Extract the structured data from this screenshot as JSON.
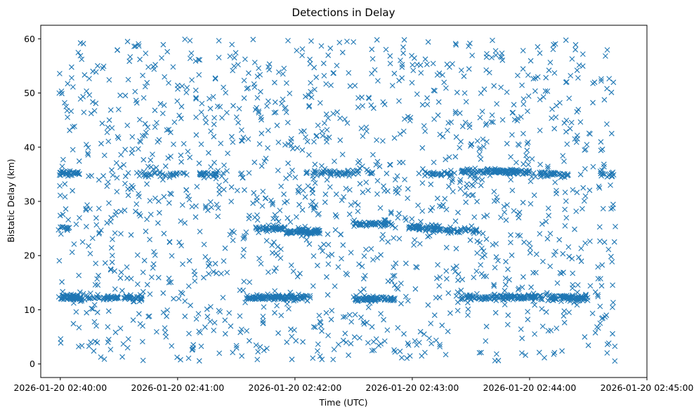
{
  "chart_data": {
    "type": "scatter",
    "title": "Detections in Delay",
    "xlabel": "Time (UTC)",
    "ylabel": "Bistatic Delay (km)",
    "marker": "x",
    "color": "#1f77b4",
    "xlim_seconds": [
      -10,
      300
    ],
    "ylim": [
      -2.5,
      62.5
    ],
    "x_domain_seconds": [
      -1,
      284
    ],
    "x_ticks": [
      {
        "t": 0,
        "label": "2026-01-20 02:40:00"
      },
      {
        "t": 60,
        "label": "2026-01-20 02:41:00"
      },
      {
        "t": 120,
        "label": "2026-01-20 02:42:00"
      },
      {
        "t": 180,
        "label": "2026-01-20 02:43:00"
      },
      {
        "t": 240,
        "label": "2026-01-20 02:44:00"
      },
      {
        "t": 300,
        "label": "2026-01-20 02:45:00"
      }
    ],
    "y_ticks": [
      {
        "v": 0,
        "label": "0"
      },
      {
        "v": 10,
        "label": "10"
      },
      {
        "v": 20,
        "label": "20"
      },
      {
        "v": 30,
        "label": "30"
      },
      {
        "v": 40,
        "label": "40"
      },
      {
        "v": 50,
        "label": "50"
      },
      {
        "v": 60,
        "label": "60"
      }
    ],
    "background_points": 1500,
    "background_y_range": [
      0.5,
      60
    ],
    "tracks": [
      {
        "t0": -1,
        "t1": 11,
        "y": 12.3,
        "count": 60
      },
      {
        "t0": 33,
        "t1": 42,
        "y": 12.2,
        "count": 30
      },
      {
        "t0": 95,
        "t1": 128,
        "y": 12.3,
        "count": 120
      },
      {
        "t0": 150,
        "t1": 172,
        "y": 12.0,
        "count": 70
      },
      {
        "t0": 205,
        "t1": 243,
        "y": 12.3,
        "count": 120
      },
      {
        "t0": 245,
        "t1": 270,
        "y": 12.2,
        "count": 90
      },
      {
        "t0": 8,
        "t1": 30,
        "y": 12.2,
        "count": 40
      },
      {
        "t0": -1,
        "t1": 5,
        "y": 25.2,
        "count": 12
      },
      {
        "t0": 100,
        "t1": 115,
        "y": 25.0,
        "count": 45
      },
      {
        "t0": 115,
        "t1": 133,
        "y": 24.4,
        "count": 70
      },
      {
        "t0": 150,
        "t1": 170,
        "y": 25.8,
        "count": 55
      },
      {
        "t0": 178,
        "t1": 195,
        "y": 25.2,
        "count": 50
      },
      {
        "t0": 190,
        "t1": 213,
        "y": 24.6,
        "count": 40
      },
      {
        "t0": -1,
        "t1": 10,
        "y": 35.2,
        "count": 35
      },
      {
        "t0": 70,
        "t1": 80,
        "y": 35.0,
        "count": 25
      },
      {
        "t0": 125,
        "t1": 160,
        "y": 35.3,
        "count": 55
      },
      {
        "t0": 185,
        "t1": 200,
        "y": 35.0,
        "count": 30
      },
      {
        "t0": 205,
        "t1": 240,
        "y": 35.5,
        "count": 110
      },
      {
        "t0": 245,
        "t1": 260,
        "y": 35.0,
        "count": 40
      },
      {
        "t0": 275,
        "t1": 283,
        "y": 35.0,
        "count": 15
      },
      {
        "t0": 40,
        "t1": 65,
        "y": 35.0,
        "count": 30
      }
    ],
    "seed": 20260120
  }
}
